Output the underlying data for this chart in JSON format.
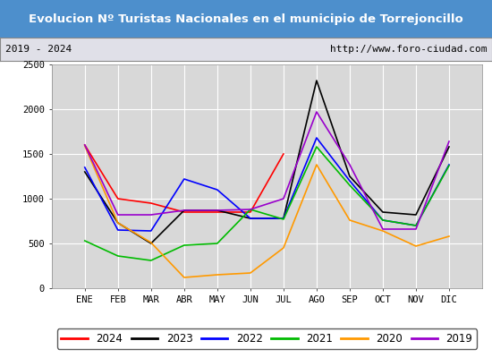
{
  "title": "Evolucion Nº Turistas Nacionales en el municipio de Torrejoncillo",
  "subtitle_left": "2019 - 2024",
  "subtitle_right": "http://www.foro-ciudad.com",
  "title_bg_color": "#4d8fcc",
  "title_text_color": "#ffffff",
  "months": [
    "ENE",
    "FEB",
    "MAR",
    "ABR",
    "MAY",
    "JUN",
    "JUL",
    "AGO",
    "SEP",
    "OCT",
    "NOV",
    "DIC"
  ],
  "series": {
    "2024": {
      "color": "#ff0000",
      "data": [
        1600,
        1000,
        950,
        850,
        850,
        850,
        1500,
        null,
        null,
        null,
        null,
        null
      ]
    },
    "2023": {
      "color": "#000000",
      "data": [
        1300,
        730,
        500,
        870,
        870,
        780,
        780,
        2320,
        1250,
        850,
        820,
        1580
      ]
    },
    "2022": {
      "color": "#0000ff",
      "data": [
        1350,
        650,
        640,
        1220,
        1100,
        780,
        780,
        1680,
        1200,
        760,
        700,
        1380
      ]
    },
    "2021": {
      "color": "#00bb00",
      "data": [
        530,
        360,
        310,
        480,
        500,
        880,
        770,
        1580,
        1150,
        760,
        700,
        1370
      ]
    },
    "2020": {
      "color": "#ff9900",
      "data": [
        1590,
        730,
        510,
        120,
        150,
        170,
        450,
        1380,
        760,
        640,
        470,
        580
      ]
    },
    "2019": {
      "color": "#9900cc",
      "data": [
        1600,
        820,
        820,
        870,
        870,
        880,
        1000,
        1970,
        1380,
        660,
        660,
        1640
      ]
    }
  },
  "ylim": [
    0,
    2500
  ],
  "yticks": [
    0,
    500,
    1000,
    1500,
    2000,
    2500
  ],
  "plot_bg_color": "#d8d8d8",
  "grid_color": "#ffffff",
  "fig_bg_color": "#ffffff"
}
